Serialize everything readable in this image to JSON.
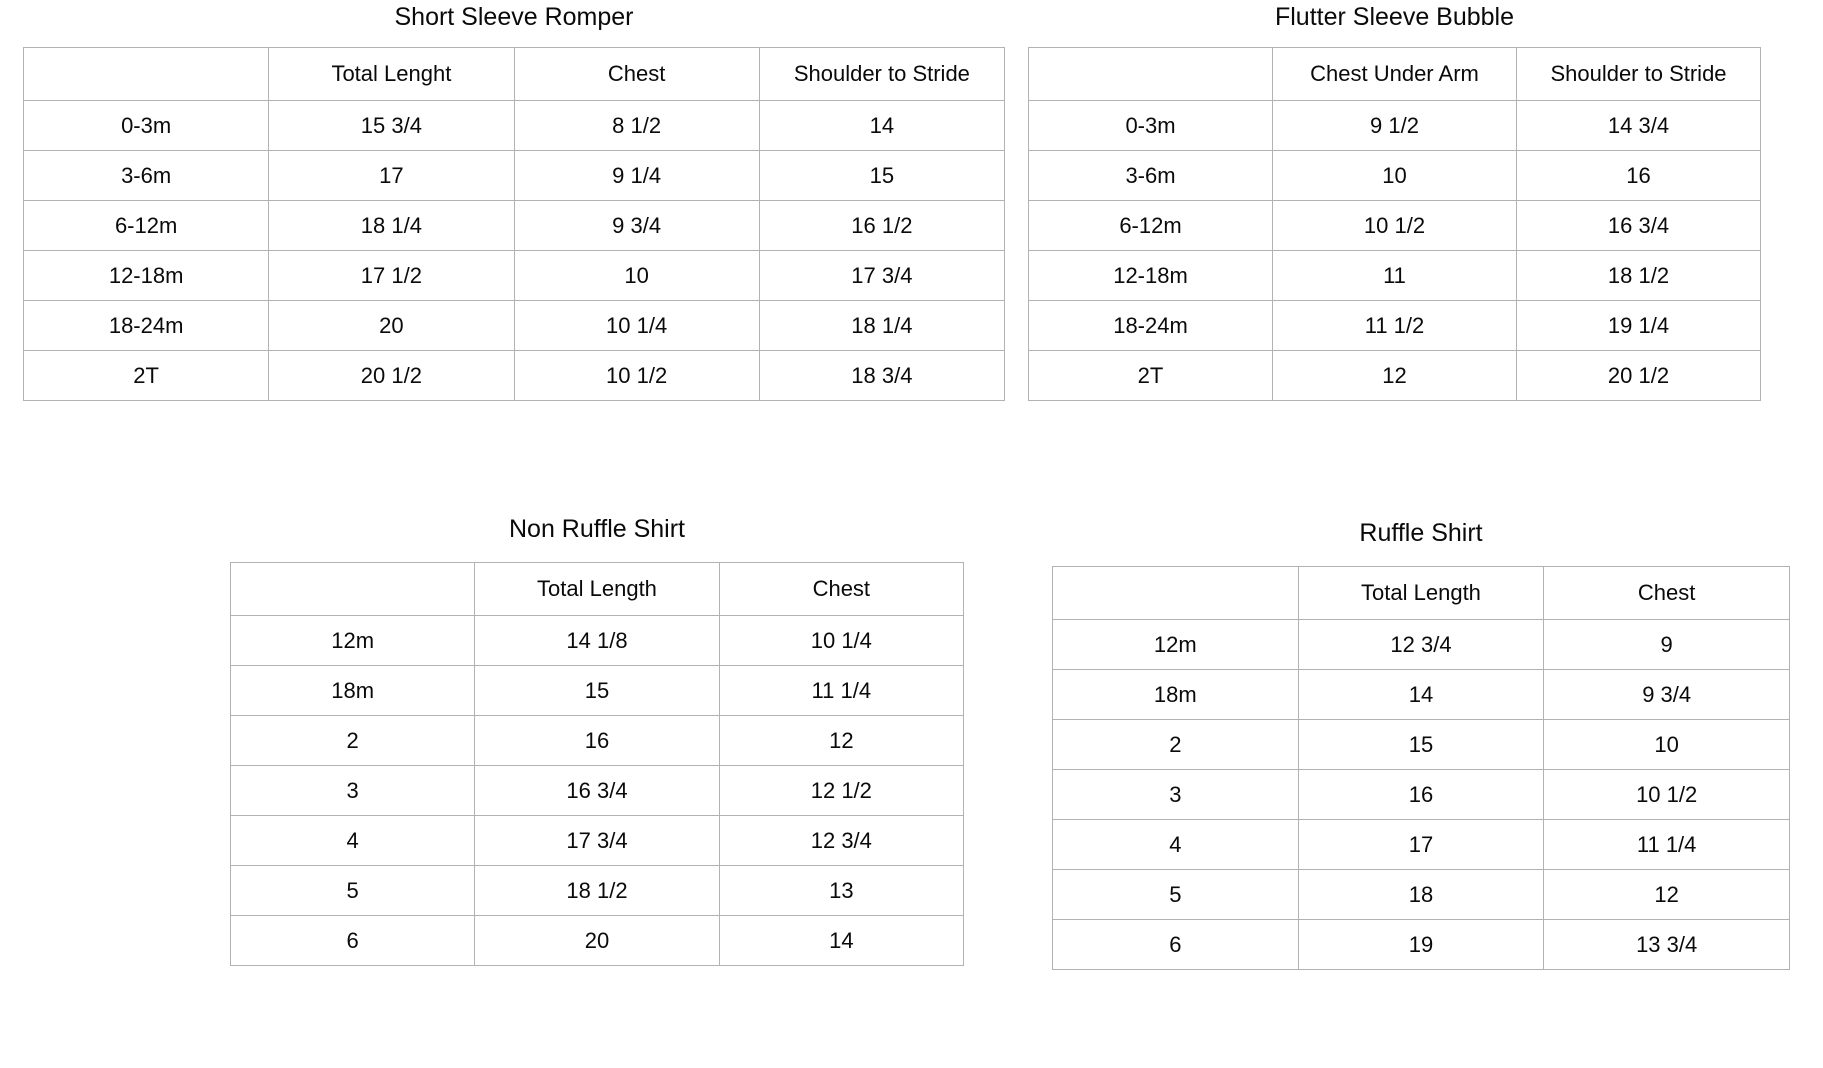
{
  "page": {
    "background_color": "#ffffff",
    "text_color": "#0a0a0a",
    "grid_line_color": "#b2b2b2"
  },
  "chart_data": [
    {
      "type": "table",
      "title": "Short Sleeve Romper",
      "columns": [
        "",
        "Total Lenght",
        "Chest",
        "Shoulder to Stride"
      ],
      "rows": [
        [
          "0-3m",
          "15 3/4",
          "8 1/2",
          "14"
        ],
        [
          "3-6m",
          "17",
          "9 1/4",
          "15"
        ],
        [
          "6-12m",
          "18 1/4",
          "9 3/4",
          "16 1/2"
        ],
        [
          "12-18m",
          "17 1/2",
          "10",
          "17 3/4"
        ],
        [
          "18-24m",
          "20",
          "10 1/4",
          "18 1/4"
        ],
        [
          "2T",
          "20 1/2",
          "10 1/2",
          "18 3/4"
        ]
      ]
    },
    {
      "type": "table",
      "title": "Flutter Sleeve Bubble",
      "columns": [
        "",
        "Chest Under Arm",
        "Shoulder to Stride"
      ],
      "rows": [
        [
          "0-3m",
          "9 1/2",
          "14 3/4"
        ],
        [
          "3-6m",
          "10",
          "16"
        ],
        [
          "6-12m",
          "10 1/2",
          "16 3/4"
        ],
        [
          "12-18m",
          "11",
          "18 1/2"
        ],
        [
          "18-24m",
          "11 1/2",
          "19 1/4"
        ],
        [
          "2T",
          "12",
          "20 1/2"
        ]
      ]
    },
    {
      "type": "table",
      "title": "Non Ruffle Shirt",
      "columns": [
        "",
        "Total Length",
        "Chest"
      ],
      "rows": [
        [
          "12m",
          "14 1/8",
          "10 1/4"
        ],
        [
          "18m",
          "15",
          "11 1/4"
        ],
        [
          "2",
          "16",
          "12"
        ],
        [
          "3",
          "16 3/4",
          "12 1/2"
        ],
        [
          "4",
          "17 3/4",
          "12 3/4"
        ],
        [
          "5",
          "18 1/2",
          "13"
        ],
        [
          "6",
          "20",
          "14"
        ]
      ]
    },
    {
      "type": "table",
      "title": "Ruffle Shirt",
      "columns": [
        "",
        "Total Length",
        "Chest"
      ],
      "rows": [
        [
          "12m",
          "12 3/4",
          "9"
        ],
        [
          "18m",
          "14",
          "9 3/4"
        ],
        [
          "2",
          "15",
          "10"
        ],
        [
          "3",
          "16",
          "10 1/2"
        ],
        [
          "4",
          "17",
          "11 1/4"
        ],
        [
          "5",
          "18",
          "12"
        ],
        [
          "6",
          "19",
          "13 3/4"
        ]
      ]
    }
  ]
}
